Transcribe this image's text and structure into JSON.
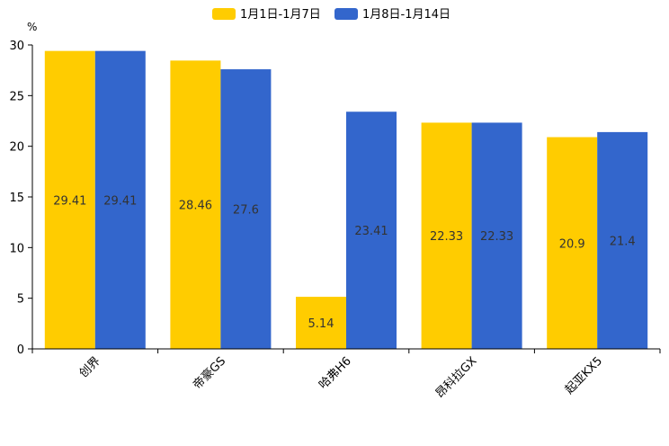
{
  "chart_data": {
    "type": "bar",
    "title": "",
    "xlabel": "",
    "ylabel": "",
    "unit_label": "%",
    "categories": [
      "创界",
      "帝豪GS",
      "哈弗H6",
      "昂科拉GX",
      "起亚KX5"
    ],
    "series": [
      {
        "name": "1月1日-1月7日",
        "color": "#FFCC00",
        "values": [
          29.41,
          28.46,
          5.14,
          22.33,
          20.9
        ],
        "labels": [
          "29.41",
          "28.46",
          "5.14",
          "22.33",
          "20.9"
        ]
      },
      {
        "name": "1月8日-1月14日",
        "color": "#3366CC",
        "values": [
          29.41,
          27.6,
          23.41,
          22.33,
          21.4
        ],
        "labels": [
          "29.41",
          "27.6",
          "23.41",
          "22.33",
          "21.4"
        ]
      }
    ],
    "ylim": [
      0,
      30
    ],
    "yticks": [
      0,
      5,
      10,
      15,
      20,
      25,
      30
    ],
    "ytick_labels": [
      "0",
      "5",
      "10",
      "15",
      "20",
      "25",
      "30"
    ],
    "grid": false,
    "legend_position": "top-center",
    "label_color": "#333333",
    "axis_color": "#000000"
  }
}
